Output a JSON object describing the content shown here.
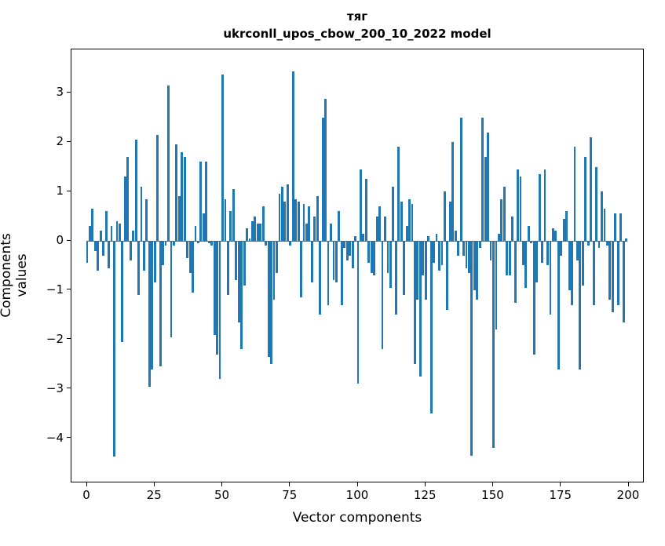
{
  "figure": {
    "title_line1": "тяг",
    "title_line2": "ukrconll_upos_cbow_200_10_2022 model"
  },
  "chart_data": {
    "type": "bar",
    "title": "тяг\nukrconll_upos_cbow_200_10_2022 model",
    "xlabel": "Vector components",
    "ylabel": "Components values",
    "legend": "none",
    "grid": false,
    "bar_color": "#1f77b4",
    "axis_color": "#000000",
    "x_ticks": [
      0,
      25,
      50,
      75,
      100,
      125,
      150,
      175,
      200
    ],
    "y_ticks": [
      -4,
      -3,
      -2,
      -1,
      0,
      1,
      2,
      3
    ],
    "xlim": [
      -5.8,
      205.8
    ],
    "ylim": [
      -4.91,
      3.88
    ],
    "x_start": 0,
    "values": [
      -0.45,
      0.3,
      0.65,
      -0.2,
      -0.6,
      0.2,
      -0.3,
      0.6,
      -0.55,
      0.3,
      -4.37,
      0.4,
      0.35,
      -2.05,
      1.3,
      1.7,
      -0.4,
      0.2,
      2.05,
      -1.1,
      1.1,
      -0.6,
      0.85,
      -2.95,
      -2.6,
      -0.85,
      2.15,
      -2.55,
      -0.5,
      -0.1,
      3.15,
      -1.95,
      -0.1,
      1.95,
      0.9,
      1.8,
      1.7,
      -0.35,
      -0.65,
      -1.05,
      0.3,
      -0.05,
      1.6,
      0.55,
      1.6,
      -0.05,
      -0.1,
      -1.9,
      -2.3,
      -2.8,
      3.37,
      0.85,
      -1.1,
      0.6,
      1.05,
      -0.8,
      -1.65,
      -2.2,
      -0.9,
      0.25,
      0.05,
      0.4,
      0.5,
      0.35,
      0.35,
      0.7,
      -0.1,
      -2.35,
      -2.5,
      -1.2,
      -0.65,
      0.95,
      1.1,
      0.8,
      1.15,
      -0.1,
      3.43,
      0.85,
      0.8,
      -1.15,
      0.75,
      0.35,
      0.7,
      -0.85,
      0.5,
      0.9,
      -1.5,
      2.5,
      2.87,
      -1.3,
      0.35,
      -0.8,
      -0.85,
      0.6,
      -1.3,
      -0.15,
      -0.4,
      -0.3,
      -0.55,
      0.1,
      -2.9,
      1.45,
      0.15,
      1.25,
      -0.45,
      -0.65,
      -0.7,
      0.5,
      0.7,
      -2.2,
      0.5,
      -0.65,
      -0.95,
      1.1,
      -1.5,
      1.9,
      0.8,
      -1.1,
      0.3,
      0.85,
      0.75,
      -2.5,
      -1.2,
      -2.75,
      -0.7,
      -1.2,
      0.1,
      -3.5,
      -0.45,
      0.15,
      -0.6,
      -0.5,
      1.0,
      -1.4,
      0.8,
      2.0,
      0.2,
      -0.3,
      2.5,
      -0.3,
      -0.55,
      -0.65,
      -4.35,
      -1.0,
      -1.2,
      -0.15,
      2.5,
      1.7,
      2.2,
      -0.4,
      -4.2,
      -1.8,
      0.15,
      0.85,
      1.1,
      -0.7,
      -0.7,
      0.5,
      -1.25,
      1.45,
      1.3,
      -0.5,
      -0.95,
      0.3,
      -0.05,
      -2.3,
      -0.85,
      1.35,
      -0.45,
      1.45,
      -0.5,
      -1.5,
      0.25,
      0.2,
      -2.6,
      -0.3,
      0.45,
      0.6,
      -1.0,
      -1.3,
      1.9,
      -0.4,
      -2.6,
      -0.9,
      1.7,
      -0.1,
      2.1,
      -1.3,
      1.5,
      -0.15,
      1.0,
      0.65,
      -0.1,
      -1.2,
      -1.45,
      0.55,
      -1.3,
      0.55,
      -1.65,
      0.05
    ]
  }
}
